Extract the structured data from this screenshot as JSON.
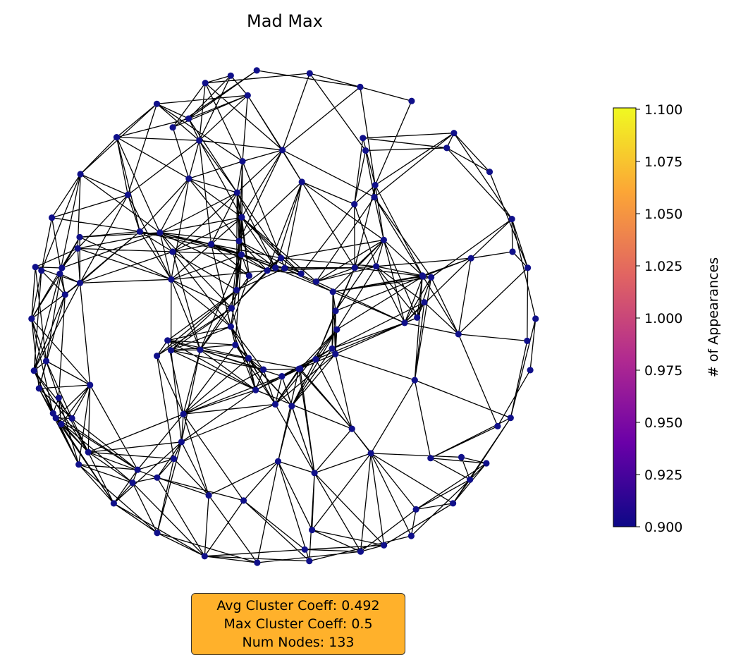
{
  "title": "Mad Max",
  "graph": {
    "node_color": "#10108a",
    "edge_color": "#000000",
    "num_nodes": 133,
    "layout": "ring with empty center"
  },
  "colorbar": {
    "label": "# of Appearances",
    "colormap": "plasma",
    "min": 0.9,
    "max": 1.1,
    "ticks": [
      "1.100",
      "1.075",
      "1.050",
      "1.025",
      "1.000",
      "0.975",
      "0.950",
      "0.925",
      "0.900"
    ],
    "colors": [
      "#0d0887",
      "#6a00a8",
      "#b12a90",
      "#e16462",
      "#fca636",
      "#f0f921"
    ]
  },
  "stats": {
    "avg_cluster_coeff": "Avg Cluster Coeff: 0.492",
    "max_cluster_coeff": "Max Cluster Coeff: 0.5",
    "num_nodes": "Num Nodes: 133"
  }
}
